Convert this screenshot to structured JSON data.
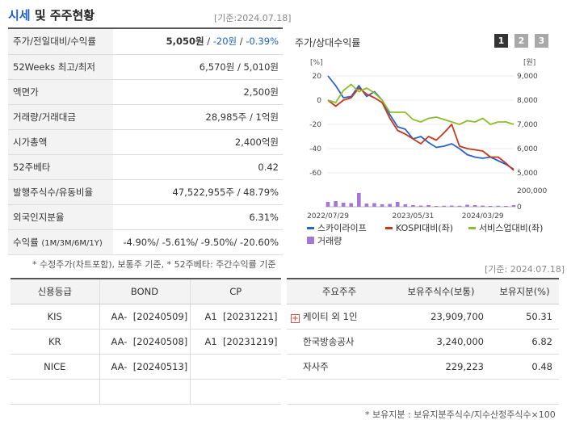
{
  "header": {
    "title_blue": "시세",
    "title_rest": " 및 주주현황",
    "date": "[기준:2024.07.18]"
  },
  "info": {
    "rows": [
      {
        "label": "주가/전일대비/수익률",
        "v1": "5,050원",
        "v2": "-20원",
        "v3": "-0.39%"
      },
      {
        "label": "52Weeks 최고/최저",
        "value": "6,570원 / 5,010원"
      },
      {
        "label": "액면가",
        "value": "2,500원"
      },
      {
        "label": "거래량/거래대금",
        "value": "28,985주 / 1억원"
      },
      {
        "label": "시가총액",
        "value": "2,400억원"
      },
      {
        "label": "52주베타",
        "value": "0.42"
      },
      {
        "label": "발행주식수/유동비율",
        "value": "47,522,955주 / 48.79%"
      },
      {
        "label": "외국인지분율",
        "value": "6.31%"
      },
      {
        "label": "수익률",
        "label_small": "(1M/3M/6M/1Y)",
        "value": "-4.90%/ -5.61%/ -9.50%/ -20.60%"
      }
    ],
    "note": "* 수정주가(차트포함), 보통주 기준, * 52주베타: 주간수익률 기준"
  },
  "chart": {
    "title": "주가/상대수익률",
    "pages": [
      "1",
      "2",
      "3"
    ],
    "colors": {
      "stock": "#2a63c8",
      "kospi": "#c8361c",
      "service": "#8dbf2d",
      "volume": "#a277d6",
      "page_active": "#333333",
      "page_inactive": "#a8a8a8"
    }
  },
  "chart_data": {
    "type": "line",
    "left_unit": "[%]",
    "right_unit": "[원]",
    "left_ticks": [
      "20",
      "0",
      "-20",
      "-40",
      "-60"
    ],
    "right_ticks": [
      "9,000",
      "8,000",
      "7,000",
      "6,000",
      "5,000"
    ],
    "vol_ticks": [
      "200,000",
      "0"
    ],
    "x_ticks": [
      "2022/07/29",
      "2023/05/31",
      "2024/03/29"
    ],
    "ylim_left": [
      -60,
      20
    ],
    "ylim_right": [
      5000,
      9000
    ],
    "vol_max": 200000,
    "x": [
      "2022/07",
      "2022/08",
      "2022/09",
      "2022/10",
      "2022/11",
      "2022/12",
      "2023/01",
      "2023/02",
      "2023/03",
      "2023/04",
      "2023/05",
      "2023/06",
      "2023/07",
      "2023/08",
      "2023/09",
      "2023/10",
      "2023/11",
      "2023/12",
      "2024/01",
      "2024/02",
      "2024/03",
      "2024/04",
      "2024/05",
      "2024/06",
      "2024/07"
    ],
    "series": [
      {
        "name": "스카이라이프",
        "color": "#2a63c8",
        "values": [
          20,
          12,
          2,
          3,
          12,
          3,
          7,
          0,
          -12,
          -22,
          -24,
          -32,
          -30,
          -35,
          -39,
          -38,
          -36,
          -40,
          -45,
          -47,
          -48,
          -47,
          -50,
          -53,
          -57
        ]
      },
      {
        "name": "KOSPI대비(좌)",
        "color": "#c8361c",
        "values": [
          0,
          -5,
          0,
          2,
          10,
          5,
          2,
          -2,
          -15,
          -25,
          -28,
          -32,
          -36,
          -30,
          -33,
          -27,
          -20,
          -38,
          -40,
          -41,
          -42,
          -47,
          -47,
          -52,
          -58
        ]
      },
      {
        "name": "서비스업대비(좌)",
        "color": "#8dbf2d",
        "values": [
          0,
          -2,
          8,
          13,
          7,
          10,
          6,
          0,
          -10,
          -10,
          -10,
          -16,
          -18,
          -15,
          -14,
          -16,
          -18,
          -20,
          -17,
          -18,
          -15,
          -20,
          -18,
          -18,
          -20
        ]
      }
    ],
    "volume": {
      "name": "거래량",
      "color": "#a277d6",
      "values": [
        60000,
        70000,
        50000,
        45000,
        170000,
        40000,
        45000,
        30000,
        35000,
        60000,
        30000,
        20000,
        15000,
        20000,
        10000,
        12000,
        15000,
        12000,
        25000,
        20000,
        15000,
        10000,
        12000,
        10000,
        20000
      ]
    }
  },
  "credit": {
    "headers": [
      "신용등급",
      "BOND",
      "CP"
    ],
    "rows": [
      [
        "KIS",
        "AA-  [20240509]",
        "A1  [20231221]"
      ],
      [
        "KR",
        "AA-  [20240508]",
        "A1  [20231219]"
      ],
      [
        "NICE",
        "AA-  [20240513]",
        ""
      ],
      [
        "",
        "",
        ""
      ]
    ]
  },
  "holders": {
    "date": "[기준: 2024.07.18]",
    "headers": [
      "주요주주",
      "보유주식수(보통)",
      "보유지분(%)"
    ],
    "rows": [
      {
        "name": "케이티 외 1인",
        "shares": "23,909,700",
        "pct": "50.31",
        "expand": "+"
      },
      {
        "name": "한국방송공사",
        "shares": "3,240,000",
        "pct": "6.82"
      },
      {
        "name": "자사주",
        "shares": "229,223",
        "pct": "0.48"
      },
      {
        "name": "",
        "shares": "",
        "pct": ""
      }
    ],
    "note": "* 보유지분 : 보유지분주식수/지수산정주식수×100"
  }
}
